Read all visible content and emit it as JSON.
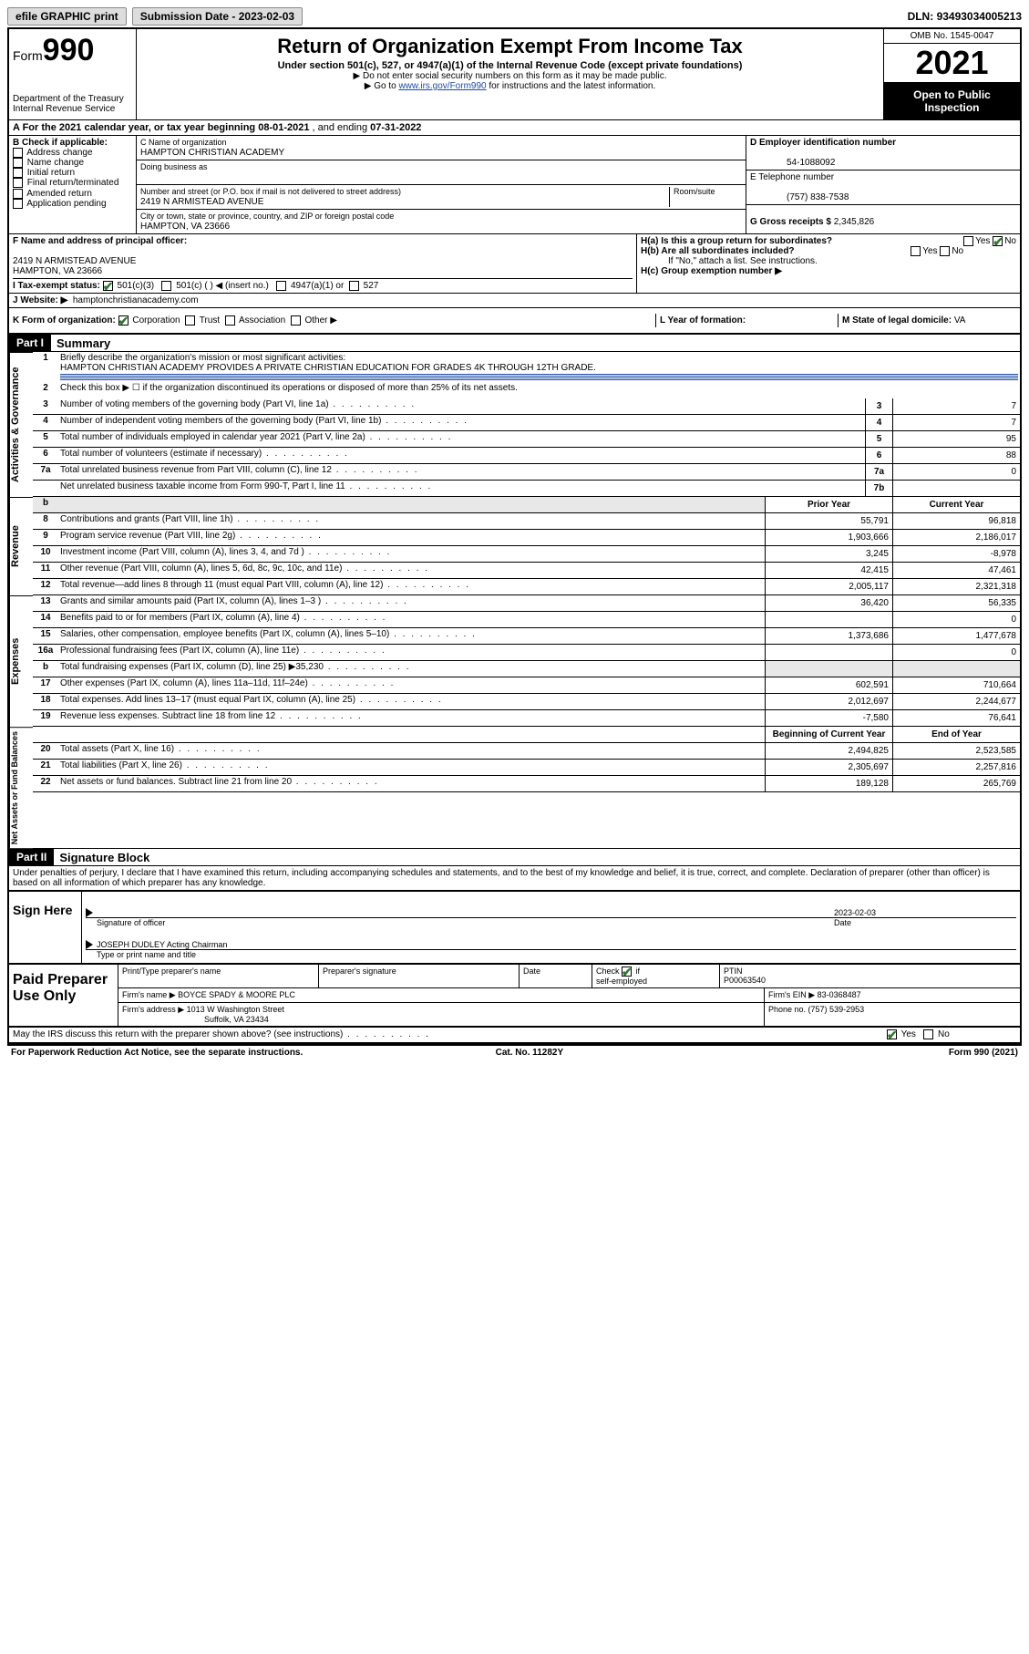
{
  "top": {
    "efile": "efile GRAPHIC print",
    "submission_label": "Submission Date - ",
    "submission_date": "2023-02-03",
    "dln_label": "DLN: ",
    "dln": "93493034005213"
  },
  "header": {
    "form_label": "Form",
    "form_number": "990",
    "dept": "Department of the Treasury",
    "irs": "Internal Revenue Service",
    "title": "Return of Organization Exempt From Income Tax",
    "sub": "Under section 501(c), 527, or 4947(a)(1) of the Internal Revenue Code (except private foundations)",
    "note1": "▶ Do not enter social security numbers on this form as it may be made public.",
    "note2_pre": "▶ Go to ",
    "note2_link": "www.irs.gov/Form990",
    "note2_post": " for instructions and the latest information.",
    "omb": "OMB No. 1545-0047",
    "year": "2021",
    "open": "Open to Public Inspection"
  },
  "line_a": {
    "text_pre": "A For the 2021 calendar year, or tax year beginning ",
    "begin": "08-01-2021",
    "text_mid": " , and ending ",
    "end": "07-31-2022"
  },
  "section_b": {
    "title": "B Check if applicable:",
    "items": [
      "Address change",
      "Name change",
      "Initial return",
      "Final return/terminated",
      "Amended return",
      "Application pending"
    ]
  },
  "section_c": {
    "label": "C Name of organization",
    "org_name": "HAMPTON CHRISTIAN ACADEMY",
    "dba_label": "Doing business as",
    "dba": "",
    "addr_label": "Number and street (or P.O. box if mail is not delivered to street address)",
    "room_label": "Room/suite",
    "addr": "2419 N ARMISTEAD AVENUE",
    "city_label": "City or town, state or province, country, and ZIP or foreign postal code",
    "city": "HAMPTON, VA  23666"
  },
  "section_d": {
    "label": "D Employer identification number",
    "ein": "54-1088092",
    "phone_label": "E Telephone number",
    "phone": "(757) 838-7538",
    "gross_label": "G Gross receipts $ ",
    "gross": "2,345,826"
  },
  "section_f": {
    "label": "F Name and address of principal officer:",
    "addr1": "2419 N ARMISTEAD AVENUE",
    "addr2": "HAMPTON, VA  23666"
  },
  "section_h": {
    "ha": "H(a)  Is this a group return for subordinates?",
    "hb": "H(b)  Are all subordinates included?",
    "hb_note": "If \"No,\" attach a list. See instructions.",
    "hc": "H(c)  Group exemption number ▶"
  },
  "line_i": {
    "label": "I   Tax-exempt status:",
    "c501c3": "501(c)(3)",
    "c501c": "501(c) (   ) ◀ (insert no.)",
    "c4947": "4947(a)(1) or",
    "c527": "527"
  },
  "line_j": {
    "label": "J   Website: ▶",
    "value": "hamptonchristianacademy.com"
  },
  "line_k": {
    "label": "K Form of organization:",
    "corp": "Corporation",
    "trust": "Trust",
    "assoc": "Association",
    "other": "Other ▶"
  },
  "line_l": {
    "label": "L Year of formation:",
    "value": ""
  },
  "line_m": {
    "label": "M State of legal domicile: ",
    "value": "VA"
  },
  "part1": {
    "hdr": "Part I",
    "title": "Summary",
    "side1": "Activities & Governance",
    "side2": "Revenue",
    "side3": "Expenses",
    "side4": "Net Assets or Fund Balances",
    "l1_label": "Briefly describe the organization's mission or most significant activities:",
    "l1_text": "HAMPTON CHRISTIAN ACADEMY PROVIDES A PRIVATE CHRISTIAN EDUCATION FOR GRADES 4K THROUGH 12TH GRADE.",
    "l2": "Check this box ▶ ☐ if the organization discontinued its operations or disposed of more than 25% of its net assets.",
    "rows_gov": [
      {
        "n": "3",
        "d": "Number of voting members of the governing body (Part VI, line 1a)",
        "box": "3",
        "v": "7"
      },
      {
        "n": "4",
        "d": "Number of independent voting members of the governing body (Part VI, line 1b)",
        "box": "4",
        "v": "7"
      },
      {
        "n": "5",
        "d": "Total number of individuals employed in calendar year 2021 (Part V, line 2a)",
        "box": "5",
        "v": "95"
      },
      {
        "n": "6",
        "d": "Total number of volunteers (estimate if necessary)",
        "box": "6",
        "v": "88"
      },
      {
        "n": "7a",
        "d": "Total unrelated business revenue from Part VIII, column (C), line 12",
        "box": "7a",
        "v": "0"
      },
      {
        "n": "",
        "d": "Net unrelated business taxable income from Form 990-T, Part I, line 11",
        "box": "7b",
        "v": ""
      }
    ],
    "col_prior": "Prior Year",
    "col_current": "Current Year",
    "rows_rev": [
      {
        "n": "8",
        "d": "Contributions and grants (Part VIII, line 1h)",
        "p": "55,791",
        "c": "96,818"
      },
      {
        "n": "9",
        "d": "Program service revenue (Part VIII, line 2g)",
        "p": "1,903,666",
        "c": "2,186,017"
      },
      {
        "n": "10",
        "d": "Investment income (Part VIII, column (A), lines 3, 4, and 7d )",
        "p": "3,245",
        "c": "-8,978"
      },
      {
        "n": "11",
        "d": "Other revenue (Part VIII, column (A), lines 5, 6d, 8c, 9c, 10c, and 11e)",
        "p": "42,415",
        "c": "47,461"
      },
      {
        "n": "12",
        "d": "Total revenue—add lines 8 through 11 (must equal Part VIII, column (A), line 12)",
        "p": "2,005,117",
        "c": "2,321,318"
      }
    ],
    "rows_exp": [
      {
        "n": "13",
        "d": "Grants and similar amounts paid (Part IX, column (A), lines 1–3 )",
        "p": "36,420",
        "c": "56,335"
      },
      {
        "n": "14",
        "d": "Benefits paid to or for members (Part IX, column (A), line 4)",
        "p": "",
        "c": "0"
      },
      {
        "n": "15",
        "d": "Salaries, other compensation, employee benefits (Part IX, column (A), lines 5–10)",
        "p": "1,373,686",
        "c": "1,477,678"
      },
      {
        "n": "16a",
        "d": "Professional fundraising fees (Part IX, column (A), line 11e)",
        "p": "",
        "c": "0"
      },
      {
        "n": "b",
        "d": "Total fundraising expenses (Part IX, column (D), line 25) ▶35,230",
        "p": "",
        "c": "",
        "shade": true
      },
      {
        "n": "17",
        "d": "Other expenses (Part IX, column (A), lines 11a–11d, 11f–24e)",
        "p": "602,591",
        "c": "710,664"
      },
      {
        "n": "18",
        "d": "Total expenses. Add lines 13–17 (must equal Part IX, column (A), line 25)",
        "p": "2,012,697",
        "c": "2,244,677"
      },
      {
        "n": "19",
        "d": "Revenue less expenses. Subtract line 18 from line 12",
        "p": "-7,580",
        "c": "76,641"
      }
    ],
    "col_beg": "Beginning of Current Year",
    "col_end": "End of Year",
    "rows_net": [
      {
        "n": "20",
        "d": "Total assets (Part X, line 16)",
        "p": "2,494,825",
        "c": "2,523,585"
      },
      {
        "n": "21",
        "d": "Total liabilities (Part X, line 26)",
        "p": "2,305,697",
        "c": "2,257,816"
      },
      {
        "n": "22",
        "d": "Net assets or fund balances. Subtract line 21 from line 20",
        "p": "189,128",
        "c": "265,769"
      }
    ]
  },
  "part2": {
    "hdr": "Part II",
    "title": "Signature Block",
    "penalties": "Under penalties of perjury, I declare that I have examined this return, including accompanying schedules and statements, and to the best of my knowledge and belief, it is true, correct, and complete. Declaration of preparer (other than officer) is based on all information of which preparer has any knowledge.",
    "sign_here": "Sign Here",
    "sig_officer": "Signature of officer",
    "date_label": "Date",
    "date": "2023-02-03",
    "name_title": "JOSEPH DUDLEY Acting Chairman",
    "name_title_label": "Type or print name and title",
    "paid": "Paid Preparer Use Only",
    "prep_name_label": "Print/Type preparer's name",
    "prep_sig_label": "Preparer's signature",
    "check_self": "Check ☑ if self-employed",
    "ptin_label": "PTIN",
    "ptin": "P00063540",
    "firm_name_label": "Firm's name    ▶ ",
    "firm_name": "BOYCE SPADY & MOORE PLC",
    "firm_ein_label": "Firm's EIN ▶ ",
    "firm_ein": "83-0368487",
    "firm_addr_label": "Firm's address ▶ ",
    "firm_addr1": "1013 W Washington Street",
    "firm_addr2": "Suffolk, VA  23434",
    "firm_phone_label": "Phone no. ",
    "firm_phone": "(757) 539-2953",
    "may_irs": "May the IRS discuss this return with the preparer shown above? (see instructions)"
  },
  "footer": {
    "paperwork": "For Paperwork Reduction Act Notice, see the separate instructions.",
    "cat": "Cat. No. 11282Y",
    "form": "Form 990 (2021)"
  }
}
